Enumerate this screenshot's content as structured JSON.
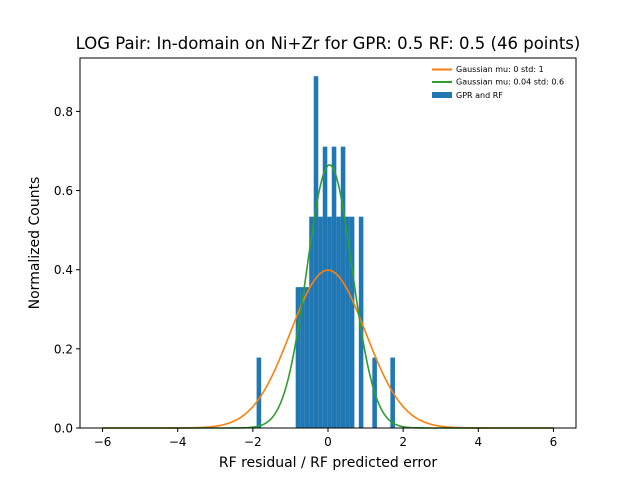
{
  "chart_data": {
    "type": "bar",
    "title": "LOG Pair: In-domain on Ni+Zr for GPR: 0.5 RF: 0.5 (46 points)",
    "xlabel": "RF residual / RF predicted error",
    "ylabel": "Normalized Counts",
    "xlim": [
      -6.6,
      6.6
    ],
    "ylim": [
      0,
      0.935
    ],
    "xticks": [
      -6,
      -4,
      -2,
      0,
      2,
      4,
      6
    ],
    "xtick_labels": [
      "−6",
      "−4",
      "−2",
      "0",
      "2",
      "4",
      "6"
    ],
    "yticks": [
      0.0,
      0.2,
      0.4,
      0.6,
      0.8
    ],
    "ytick_labels": [
      "0.0",
      "0.2",
      "0.4",
      "0.6",
      "0.8"
    ],
    "grid": false,
    "legend_position": "top-right",
    "histogram": {
      "name": "GPR and RF",
      "color": "#1f77b4",
      "bin_width": 0.1216,
      "bins": [
        {
          "x0": -1.9,
          "value": 0.178
        },
        {
          "x0": -0.86,
          "value": 0.356
        },
        {
          "x0": -0.74,
          "value": 0.356
        },
        {
          "x0": -0.62,
          "value": 0.356
        },
        {
          "x0": -0.5,
          "value": 0.534
        },
        {
          "x0": -0.38,
          "value": 0.889
        },
        {
          "x0": -0.26,
          "value": 0.534
        },
        {
          "x0": -0.14,
          "value": 0.711
        },
        {
          "x0": -0.02,
          "value": 0.534
        },
        {
          "x0": 0.1,
          "value": 0.711
        },
        {
          "x0": 0.22,
          "value": 0.534
        },
        {
          "x0": 0.34,
          "value": 0.711
        },
        {
          "x0": 0.46,
          "value": 0.534
        },
        {
          "x0": 0.58,
          "value": 0.534
        },
        {
          "x0": 0.82,
          "value": 0.534
        },
        {
          "x0": 1.18,
          "value": 0.178
        },
        {
          "x0": 1.66,
          "value": 0.178
        }
      ]
    },
    "curves": [
      {
        "name": "Gaussian mu: 0 std: 1",
        "mu": 0,
        "std": 1,
        "color": "#ff7f0e"
      },
      {
        "name": "Gaussian mu: 0.04 std: 0.6",
        "mu": 0.04,
        "std": 0.6,
        "color": "#2ca02c"
      }
    ],
    "curve_x_range": [
      -6,
      6
    ]
  }
}
